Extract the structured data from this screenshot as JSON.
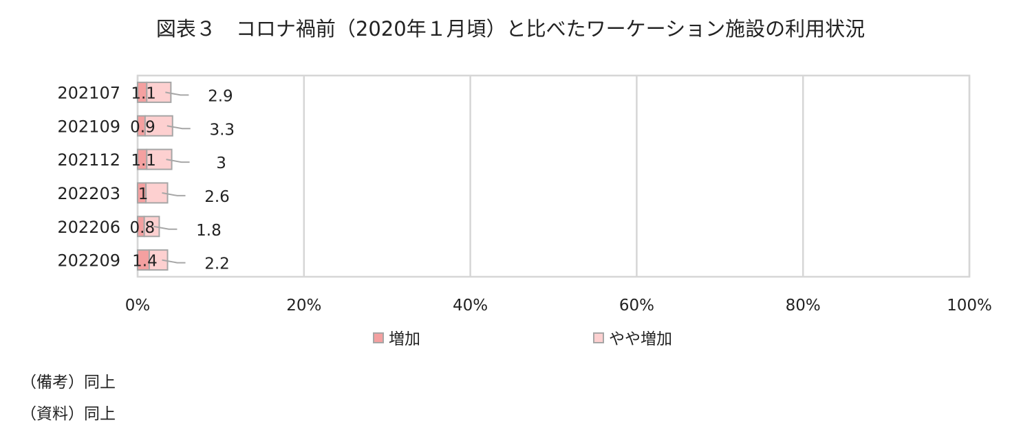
{
  "title": "図表３　コロナ禍前（2020年１月頃）と比べたワーケーション施設の利用状況",
  "notes": [
    "（備考）同上",
    "（資料）同上"
  ],
  "colors": {
    "increase": "#f4a0a0",
    "slight_increase": "#fdd0d0",
    "border": "#a6a6a6",
    "grid": "#d6d6d6"
  },
  "chart_data": {
    "type": "bar",
    "orientation": "horizontal",
    "stacked": true,
    "categories": [
      "202107",
      "202109",
      "202112",
      "202203",
      "202206",
      "202209"
    ],
    "series": [
      {
        "name": "増加",
        "values": [
          1.1,
          0.9,
          1.1,
          1,
          0.8,
          1.4
        ]
      },
      {
        "name": "やや増加",
        "values": [
          2.9,
          3.3,
          3,
          2.6,
          1.8,
          2.2
        ]
      }
    ],
    "x_ticks": [
      "0%",
      "20%",
      "40%",
      "60%",
      "80%",
      "100%"
    ],
    "xlim": [
      0,
      100
    ],
    "grid": true,
    "legend": "bottom"
  }
}
